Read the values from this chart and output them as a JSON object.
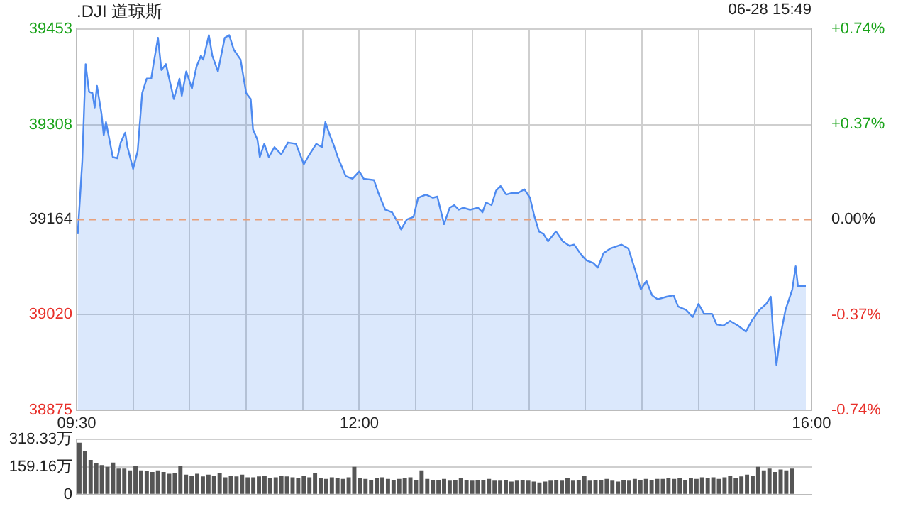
{
  "chart_data": [
    {
      "type": "area",
      "title": ".DJI 道琼斯",
      "annotations": [
        "06-28 15:49"
      ],
      "x": [
        9.51,
        9.55,
        9.58,
        9.61,
        9.64,
        9.66,
        9.68,
        9.72,
        9.74,
        9.76,
        9.82,
        9.86,
        9.89,
        9.93,
        9.95,
        10.0,
        10.04,
        10.08,
        10.12,
        10.16,
        10.18,
        10.22,
        10.25,
        10.29,
        10.36,
        10.41,
        10.43,
        10.47,
        10.52,
        10.56,
        10.6,
        10.62,
        10.67,
        10.7,
        10.75,
        10.81,
        10.85,
        10.89,
        10.95,
        11.0,
        11.04,
        11.06,
        11.1,
        11.12,
        11.16,
        11.2,
        11.25,
        11.31,
        11.37,
        11.44,
        11.51,
        11.56,
        11.62,
        11.67,
        11.7,
        11.74,
        11.77,
        11.81,
        11.88,
        11.94,
        12.0,
        12.04,
        12.13,
        12.17,
        12.23,
        12.29,
        12.34,
        12.37,
        12.42,
        12.48,
        12.52,
        12.59,
        12.65,
        12.69,
        12.75,
        12.8,
        12.84,
        12.88,
        12.92,
        12.98,
        13.05,
        13.09,
        13.12,
        13.17,
        13.21,
        13.25,
        13.3,
        13.34,
        13.4,
        13.46,
        13.51,
        13.55,
        13.59,
        13.63,
        13.67,
        13.74,
        13.8,
        13.86,
        13.9,
        13.97,
        14.01,
        14.07,
        14.11,
        14.16,
        14.22,
        14.32,
        14.38,
        14.45,
        14.49,
        14.54,
        14.59,
        14.64,
        14.72,
        14.78,
        14.82,
        14.89,
        14.95,
        15.0,
        15.05,
        15.12,
        15.16,
        15.22,
        15.28,
        15.35,
        15.42,
        15.47,
        15.54,
        15.6,
        15.64,
        15.66,
        15.69,
        15.72,
        15.77,
        15.83,
        15.86,
        15.88,
        15.95
      ],
      "series": [
        {
          "color": "#4d8af0",
          "values": [
            39142,
            39252,
            39400,
            39358,
            39356,
            39334,
            39367,
            39325,
            39292,
            39312,
            39259,
            39257,
            39281,
            39296,
            39274,
            39241,
            39268,
            39356,
            39378,
            39378,
            39400,
            39440,
            39391,
            39400,
            39347,
            39378,
            39352,
            39389,
            39363,
            39396,
            39413,
            39407,
            39444,
            39413,
            39389,
            39440,
            39444,
            39422,
            39407,
            39356,
            39347,
            39301,
            39285,
            39259,
            39279,
            39259,
            39274,
            39263,
            39281,
            39279,
            39248,
            39263,
            39279,
            39274,
            39312,
            39292,
            39279,
            39259,
            39230,
            39226,
            39237,
            39226,
            39224,
            39204,
            39179,
            39175,
            39160,
            39149,
            39164,
            39168,
            39197,
            39202,
            39197,
            39199,
            39157,
            39182,
            39186,
            39179,
            39182,
            39179,
            39182,
            39175,
            39190,
            39186,
            39208,
            39215,
            39202,
            39204,
            39204,
            39210,
            39197,
            39168,
            39146,
            39142,
            39131,
            39146,
            39131,
            39124,
            39126,
            39109,
            39102,
            39098,
            39091,
            39113,
            39120,
            39126,
            39120,
            39082,
            39058,
            39071,
            39049,
            39043,
            39047,
            39049,
            39032,
            39027,
            39016,
            39036,
            39021,
            39021,
            39005,
            39003,
            39010,
            39003,
            38994,
            39010,
            39027,
            39036,
            39047,
            38994,
            38943,
            38983,
            39027,
            39058,
            39093,
            39063,
            39063
          ]
        }
      ],
      "xlim": [
        9.5,
        16
      ],
      "xticks": [
        {
          "value": 9.5,
          "label": "09:30"
        },
        {
          "value": 10,
          "label": null
        },
        {
          "value": 10.5,
          "label": null
        },
        {
          "value": 11,
          "label": null
        },
        {
          "value": 11.5,
          "label": null
        },
        {
          "value": 12,
          "label": "12:00"
        },
        {
          "value": 12.5,
          "label": null
        },
        {
          "value": 13,
          "label": null
        },
        {
          "value": 13.5,
          "label": null
        },
        {
          "value": 14,
          "label": null
        },
        {
          "value": 14.5,
          "label": null
        },
        {
          "value": 15,
          "label": null
        },
        {
          "value": 15.5,
          "label": null
        },
        {
          "value": 16,
          "label": "16:00"
        }
      ],
      "ylim": [
        38875,
        39453
      ],
      "yticks": [
        38875,
        39020,
        39164,
        39308,
        39453
      ],
      "y2lim": [
        -0.74,
        0.74
      ],
      "y2ticks": [
        {
          "value": -0.74,
          "label": "-0.74%"
        },
        {
          "value": -0.37,
          "label": "-0.37%"
        },
        {
          "value": 0,
          "label": "0.00%"
        },
        {
          "value": 0.37,
          "label": "+0.37%"
        },
        {
          "value": 0.74,
          "label": "+0.74%"
        }
      ],
      "ref_lines": [
        {
          "axis": "y",
          "value": 39164,
          "color": "#e8a07a",
          "line_style": "dashed"
        }
      ],
      "grid": true,
      "legend": false,
      "marker": "none"
    },
    {
      "type": "bar",
      "categories": [
        null,
        null,
        null,
        null,
        null,
        null,
        null,
        null,
        null,
        null,
        null,
        null,
        null,
        null,
        null,
        null,
        null,
        null,
        null,
        null,
        null,
        null,
        null,
        null,
        null,
        null,
        null,
        null,
        null,
        null,
        null,
        null,
        null,
        null,
        null,
        null,
        null,
        null,
        null,
        null,
        null,
        null,
        null,
        null,
        null,
        null,
        null,
        null,
        null,
        null,
        null,
        null,
        null,
        null,
        null,
        null,
        null,
        null,
        null,
        null,
        null,
        null,
        null,
        null,
        null,
        null,
        null,
        null,
        null,
        null,
        null,
        null,
        null,
        null,
        null,
        null,
        null,
        null,
        null,
        null,
        null,
        null,
        null,
        null,
        null,
        null,
        null,
        null,
        null,
        null,
        null,
        null,
        null,
        null,
        null,
        null,
        null,
        null,
        null,
        null,
        null,
        null,
        null,
        null,
        null,
        null,
        null,
        null,
        null,
        null,
        null,
        null,
        null,
        null,
        null,
        null,
        null,
        null,
        null,
        null,
        null,
        null,
        null,
        null,
        null,
        null,
        null,
        null,
        null,
        null,
        null
      ],
      "series": [
        {
          "color": "#555555",
          "values": [
            300,
            250,
            200,
            180,
            170,
            160,
            185,
            150,
            150,
            140,
            165,
            140,
            135,
            130,
            140,
            130,
            120,
            125,
            165,
            115,
            110,
            120,
            105,
            115,
            110,
            125,
            100,
            110,
            105,
            115,
            100,
            100,
            105,
            110,
            95,
            100,
            110,
            105,
            100,
            95,
            110,
            100,
            125,
            95,
            90,
            100,
            95,
            90,
            100,
            160,
            95,
            90,
            85,
            95,
            100,
            90,
            85,
            90,
            95,
            100,
            85,
            140,
            90,
            85,
            85,
            90,
            80,
            85,
            95,
            85,
            80,
            85,
            85,
            90,
            80,
            80,
            85,
            75,
            80,
            85,
            80,
            75,
            70,
            75,
            80,
            85,
            80,
            95,
            80,
            85,
            110,
            80,
            85,
            85,
            90,
            80,
            75,
            85,
            80,
            90,
            85,
            90,
            85,
            90,
            90,
            95,
            90,
            95,
            85,
            95,
            90,
            100,
            95,
            100,
            90,
            100,
            110,
            95,
            105,
            115,
            110,
            160,
            140,
            150,
            130,
            145,
            140,
            150,
            null,
            null,
            null
          ]
        }
      ],
      "ylim": [
        0,
        318.33
      ],
      "yticks": [
        0,
        {
          "value": 159.16,
          "label": "159.16万"
        },
        {
          "value": 318.33,
          "label": "318.33万"
        }
      ],
      "grid": "y",
      "legend": false,
      "tick_labels": "y"
    }
  ]
}
